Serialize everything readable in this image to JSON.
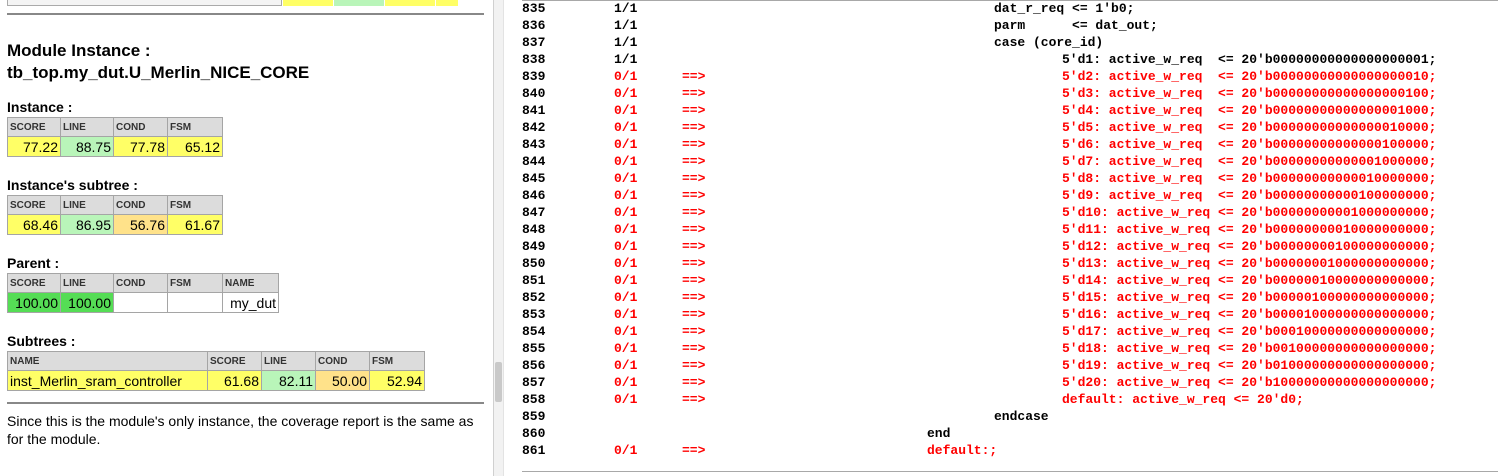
{
  "summary": {
    "module_instance_heading": "Module Instance :",
    "module_instance_path": "tb_top.my_dut.U_Merlin_NICE_CORE",
    "instance": {
      "title": "Instance :",
      "headers": [
        "SCORE",
        "LINE",
        "COND",
        "FSM"
      ],
      "values": [
        "77.22",
        "88.75",
        "77.78",
        "65.12"
      ]
    },
    "subtree": {
      "title": "Instance's subtree :",
      "headers": [
        "SCORE",
        "LINE",
        "COND",
        "FSM"
      ],
      "values": [
        "68.46",
        "86.95",
        "56.76",
        "61.67"
      ]
    },
    "parent": {
      "title": "Parent :",
      "headers": [
        "SCORE",
        "LINE",
        "COND",
        "FSM",
        "NAME"
      ],
      "values": [
        "100.00",
        "100.00",
        "",
        "",
        "my_dut"
      ]
    },
    "subtrees": {
      "title": "Subtrees :",
      "headers": [
        "NAME",
        "SCORE",
        "LINE",
        "COND",
        "FSM"
      ],
      "values": [
        "inst_Merlin_sram_controller",
        "61.68",
        "82.11",
        "50.00",
        "52.94"
      ]
    },
    "note": "Since this is the module's only instance, the coverage report is the same as for the module."
  },
  "colors": {
    "covered_text": "#000000",
    "uncovered_text": "#ff0000",
    "yellow": "#ffff66",
    "light_green": "#b9f5b9",
    "orange": "#ffe28a",
    "bright_green": "#55dd55",
    "header_gray": "#dcdcdc"
  },
  "source": {
    "lines": [
      {
        "num": "835",
        "cov": "1/1",
        "arrow": "",
        "code": "dat_r_req <= 1'b0;",
        "uncovered": false,
        "indent": 3
      },
      {
        "num": "836",
        "cov": "1/1",
        "arrow": "",
        "code": "parm      <= dat_out;",
        "uncovered": false,
        "indent": 3
      },
      {
        "num": "837",
        "cov": "1/1",
        "arrow": "",
        "code": "case (core_id)",
        "uncovered": false,
        "indent": 3
      },
      {
        "num": "838",
        "cov": "1/1",
        "arrow": "",
        "code": "5'd1: active_w_req  <= 20'b00000000000000000001;",
        "uncovered": false,
        "indent": 4
      },
      {
        "num": "839",
        "cov": "0/1",
        "arrow": "==>",
        "code": "5'd2: active_w_req  <= 20'b00000000000000000010;",
        "uncovered": true,
        "indent": 4
      },
      {
        "num": "840",
        "cov": "0/1",
        "arrow": "==>",
        "code": "5'd3: active_w_req  <= 20'b00000000000000000100;",
        "uncovered": true,
        "indent": 4
      },
      {
        "num": "841",
        "cov": "0/1",
        "arrow": "==>",
        "code": "5'd4: active_w_req  <= 20'b00000000000000001000;",
        "uncovered": true,
        "indent": 4
      },
      {
        "num": "842",
        "cov": "0/1",
        "arrow": "==>",
        "code": "5'd5: active_w_req  <= 20'b00000000000000010000;",
        "uncovered": true,
        "indent": 4
      },
      {
        "num": "843",
        "cov": "0/1",
        "arrow": "==>",
        "code": "5'd6: active_w_req  <= 20'b00000000000000100000;",
        "uncovered": true,
        "indent": 4
      },
      {
        "num": "844",
        "cov": "0/1",
        "arrow": "==>",
        "code": "5'd7: active_w_req  <= 20'b00000000000001000000;",
        "uncovered": true,
        "indent": 4
      },
      {
        "num": "845",
        "cov": "0/1",
        "arrow": "==>",
        "code": "5'd8: active_w_req  <= 20'b00000000000010000000;",
        "uncovered": true,
        "indent": 4
      },
      {
        "num": "846",
        "cov": "0/1",
        "arrow": "==>",
        "code": "5'd9: active_w_req  <= 20'b00000000000100000000;",
        "uncovered": true,
        "indent": 4
      },
      {
        "num": "847",
        "cov": "0/1",
        "arrow": "==>",
        "code": "5'd10: active_w_req <= 20'b00000000001000000000;",
        "uncovered": true,
        "indent": 4
      },
      {
        "num": "848",
        "cov": "0/1",
        "arrow": "==>",
        "code": "5'd11: active_w_req <= 20'b00000000010000000000;",
        "uncovered": true,
        "indent": 4
      },
      {
        "num": "849",
        "cov": "0/1",
        "arrow": "==>",
        "code": "5'd12: active_w_req <= 20'b00000000100000000000;",
        "uncovered": true,
        "indent": 4
      },
      {
        "num": "850",
        "cov": "0/1",
        "arrow": "==>",
        "code": "5'd13: active_w_req <= 20'b00000001000000000000;",
        "uncovered": true,
        "indent": 4
      },
      {
        "num": "851",
        "cov": "0/1",
        "arrow": "==>",
        "code": "5'd14: active_w_req <= 20'b00000010000000000000;",
        "uncovered": true,
        "indent": 4
      },
      {
        "num": "852",
        "cov": "0/1",
        "arrow": "==>",
        "code": "5'd15: active_w_req <= 20'b00000100000000000000;",
        "uncovered": true,
        "indent": 4
      },
      {
        "num": "853",
        "cov": "0/1",
        "arrow": "==>",
        "code": "5'd16: active_w_req <= 20'b00001000000000000000;",
        "uncovered": true,
        "indent": 4
      },
      {
        "num": "854",
        "cov": "0/1",
        "arrow": "==>",
        "code": "5'd17: active_w_req <= 20'b00010000000000000000;",
        "uncovered": true,
        "indent": 4
      },
      {
        "num": "855",
        "cov": "0/1",
        "arrow": "==>",
        "code": "5'd18: active_w_req <= 20'b00100000000000000000;",
        "uncovered": true,
        "indent": 4
      },
      {
        "num": "856",
        "cov": "0/1",
        "arrow": "==>",
        "code": "5'd19: active_w_req <= 20'b01000000000000000000;",
        "uncovered": true,
        "indent": 4
      },
      {
        "num": "857",
        "cov": "0/1",
        "arrow": "==>",
        "code": "5'd20: active_w_req <= 20'b10000000000000000000;",
        "uncovered": true,
        "indent": 4
      },
      {
        "num": "858",
        "cov": "0/1",
        "arrow": "==>",
        "code": "default: active_w_req <= 20'd0;",
        "uncovered": true,
        "indent": 4
      },
      {
        "num": "859",
        "cov": "",
        "arrow": "",
        "code": "endcase",
        "uncovered": false,
        "indent": 3
      },
      {
        "num": "860",
        "cov": "",
        "arrow": "",
        "code": "end",
        "uncovered": false,
        "indent": 2
      },
      {
        "num": "861",
        "cov": "0/1",
        "arrow": "==>",
        "code": "default:;",
        "uncovered": true,
        "indent": 2
      }
    ]
  }
}
